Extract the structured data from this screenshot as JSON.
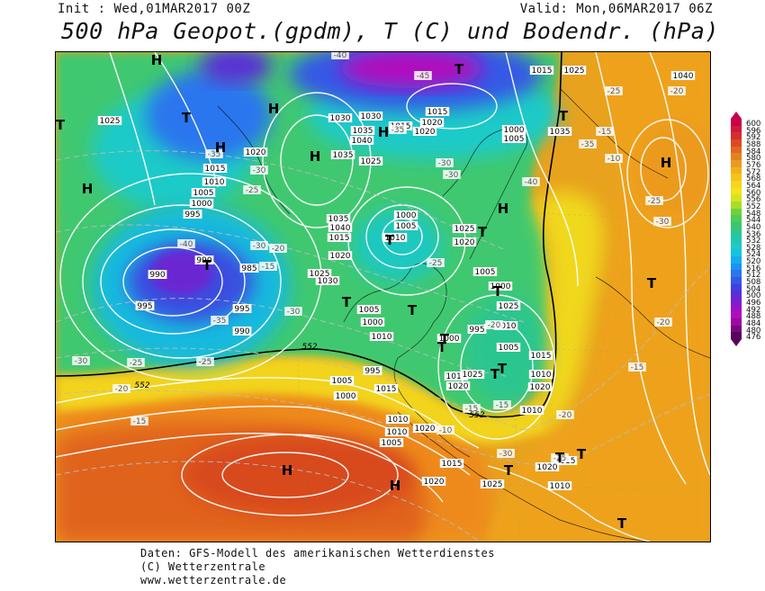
{
  "header": {
    "init": "Init : Wed,01MAR2017 00Z",
    "valid": "Valid: Mon,06MAR2017 06Z",
    "title": "500 hPa Geopot.(gpdm), T (C) und Bodendr. (hPa)"
  },
  "colorbar": {
    "labels": [
      "600",
      "596",
      "592",
      "588",
      "584",
      "580",
      "576",
      "572",
      "568",
      "564",
      "560",
      "556",
      "552",
      "548",
      "544",
      "540",
      "536",
      "532",
      "528",
      "524",
      "520",
      "516",
      "512",
      "508",
      "504",
      "500",
      "496",
      "492",
      "488",
      "484",
      "480",
      "476"
    ],
    "colors": [
      "#c8004b",
      "#d0193f",
      "#d62e2e",
      "#dc4a22",
      "#e06820",
      "#e4821e",
      "#ec9a1e",
      "#f2b01c",
      "#f6c31c",
      "#f8d41e",
      "#f4e31e",
      "#d6e41e",
      "#a8de28",
      "#6ed23a",
      "#4ccd56",
      "#38c870",
      "#2cc690",
      "#22c8ac",
      "#1ecac8",
      "#16c2df",
      "#14aef0",
      "#1c92f2",
      "#2a76ee",
      "#3658e6",
      "#3e40dc",
      "#5a2ed6",
      "#7a1ed0",
      "#9a12c8",
      "#b00cbe",
      "#9a0aa0",
      "#7a0680",
      "#58045c"
    ]
  },
  "pressure_labels": [
    {
      "t": "1015"
    },
    {
      "t": "1025"
    },
    {
      "t": "1030"
    },
    {
      "t": "1035"
    },
    {
      "t": "1040"
    },
    {
      "t": "1020"
    },
    {
      "t": "1015"
    },
    {
      "t": "1010"
    },
    {
      "t": "1005"
    },
    {
      "t": "1000"
    },
    {
      "t": "995"
    },
    {
      "t": "990"
    },
    {
      "t": "985"
    },
    {
      "t": "990"
    },
    {
      "t": "995"
    },
    {
      "t": "990"
    },
    {
      "t": "995"
    },
    {
      "t": "1000"
    },
    {
      "t": "1005"
    },
    {
      "t": "1010"
    },
    {
      "t": "1005"
    },
    {
      "t": "1000"
    },
    {
      "t": "995"
    },
    {
      "t": "1000"
    },
    {
      "t": "1005"
    },
    {
      "t": "1010"
    },
    {
      "t": "1015"
    },
    {
      "t": "1020"
    },
    {
      "t": "1025"
    },
    {
      "t": "1030"
    },
    {
      "t": "1035"
    },
    {
      "t": "1040"
    },
    {
      "t": "1015"
    },
    {
      "t": "1020"
    },
    {
      "t": "1025"
    },
    {
      "t": "1035"
    },
    {
      "t": "1020"
    },
    {
      "t": "1025"
    },
    {
      "t": "1010"
    },
    {
      "t": "1015"
    },
    {
      "t": "1020"
    },
    {
      "t": "1025"
    },
    {
      "t": "1025"
    },
    {
      "t": "1020"
    },
    {
      "t": "1015"
    },
    {
      "t": "1010"
    },
    {
      "t": "1005"
    },
    {
      "t": "1000"
    },
    {
      "t": "995"
    },
    {
      "t": "1000"
    },
    {
      "t": "1005"
    },
    {
      "t": "1010"
    },
    {
      "t": "1015"
    },
    {
      "t": "1020"
    },
    {
      "t": "1015"
    },
    {
      "t": "1020"
    },
    {
      "t": "1025"
    },
    {
      "t": "1010"
    },
    {
      "t": "1015"
    },
    {
      "t": "1020"
    },
    {
      "t": "1025"
    },
    {
      "t": "1035"
    },
    {
      "t": "1040"
    },
    {
      "t": "1030"
    },
    {
      "t": "1015"
    },
    {
      "t": "1020"
    },
    {
      "t": "1000"
    },
    {
      "t": "1005"
    },
    {
      "t": "1010"
    },
    {
      "t": "1010"
    },
    {
      "t": "1005"
    }
  ],
  "temp_labels": [
    "-40",
    "-45",
    "-35",
    "-30",
    "-25",
    "-20",
    "-15",
    "-10",
    "-35",
    "-30",
    "-25",
    "-20",
    "-15",
    "-40",
    "-35",
    "-30",
    "-25",
    "-30",
    "-25",
    "-20",
    "-15",
    "-30",
    "-30",
    "-25",
    "-20",
    "-15",
    "-10",
    "-15",
    "-20",
    "-25",
    "-30",
    "-15",
    "-20",
    "-25",
    "-30",
    "-35",
    "-40"
  ],
  "isohypse_labels": [
    "552",
    "552",
    "552"
  ],
  "centers": [
    "H",
    "H",
    "H",
    "H",
    "H",
    "H",
    "H",
    "H",
    "H",
    "H",
    "T",
    "T",
    "T",
    "T",
    "T",
    "T",
    "T",
    "T",
    "T",
    "T",
    "T",
    "T",
    "T",
    "T",
    "T",
    "T",
    "T",
    "T",
    "T"
  ],
  "credits": {
    "line1": "Daten: GFS-Modell des amerikanischen Wetterdienstes",
    "line2": "(C) Wetterzentrale",
    "line3": "www.wetterzentrale.de"
  }
}
